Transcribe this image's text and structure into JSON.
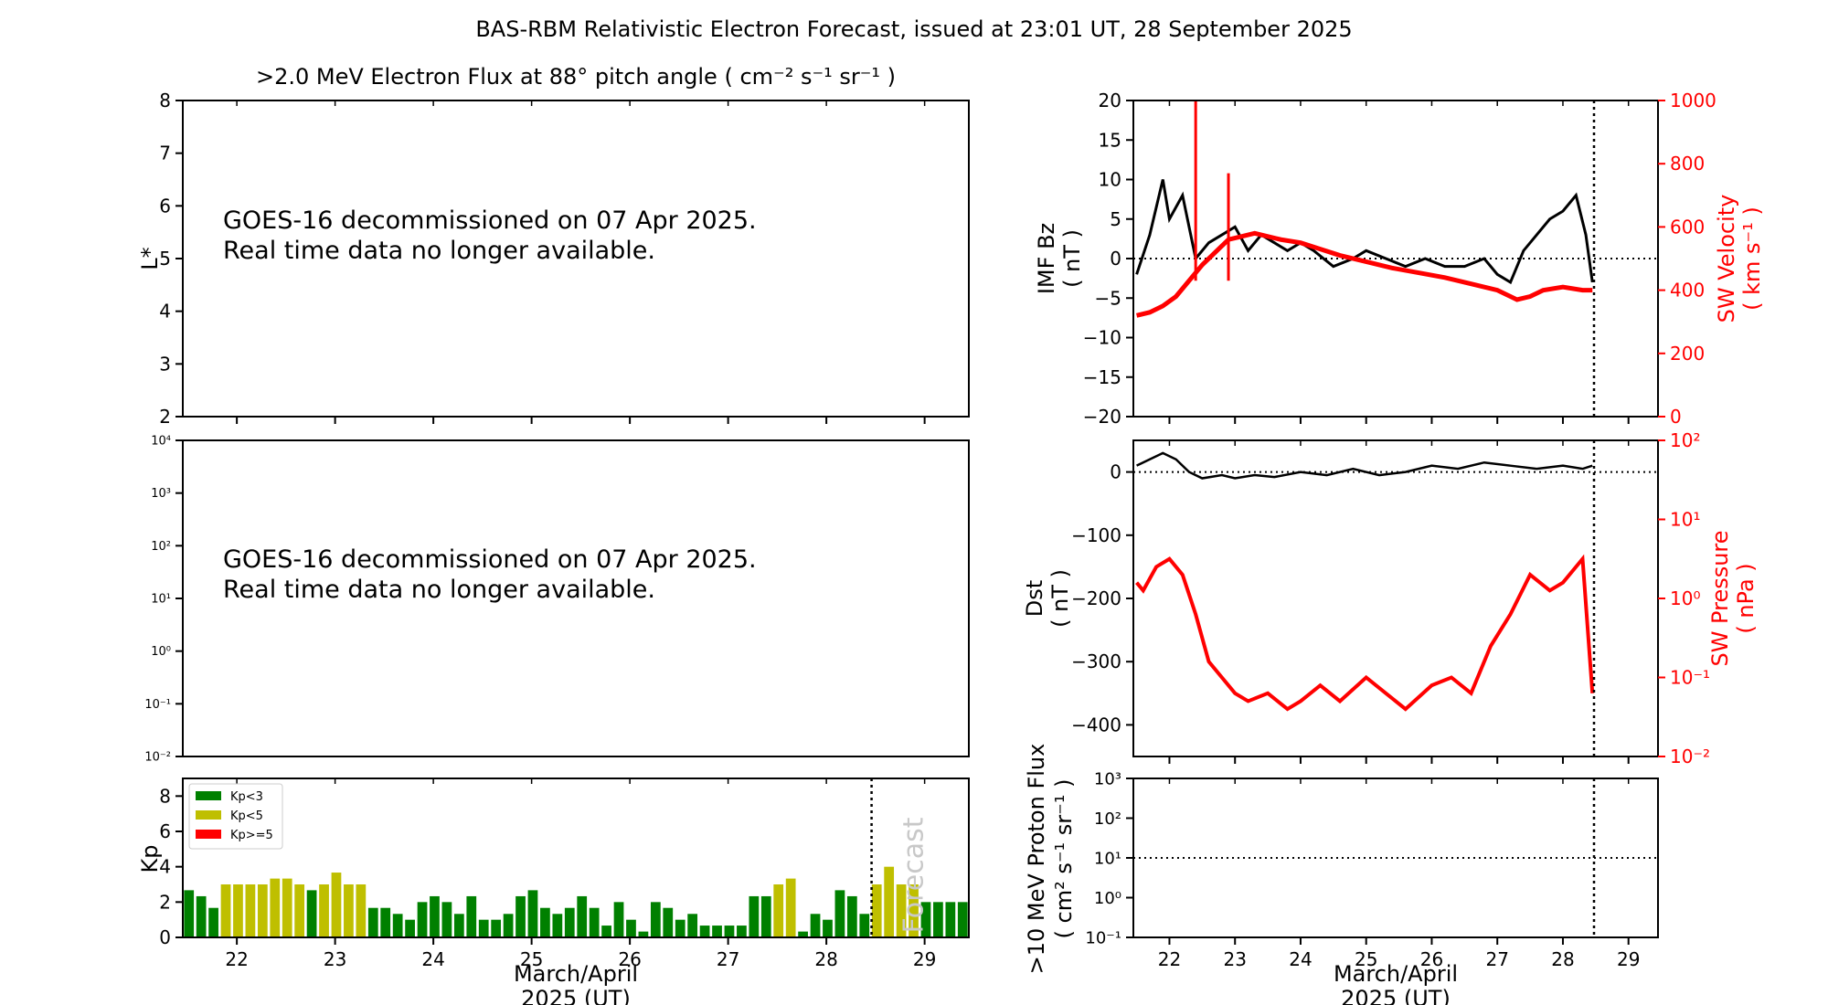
{
  "figure": {
    "title": "BAS-RBM Relativistic Electron Forecast, issued at 23:01 UT, 28 September 2025"
  },
  "chart_data": [
    {
      "id": "flux-panel",
      "type": "heatmap",
      "title": ">2.0 MeV Electron Flux at 88° pitch angle ( cm⁻² s⁻¹ sr⁻¹ )",
      "ylabel": "L*",
      "ylim": [
        2,
        8
      ],
      "yticks": [
        "2",
        "3",
        "4",
        "5",
        "6",
        "7",
        "8"
      ],
      "annotation": [
        "GOES-16 decommissioned on 07 Apr 2025.",
        "Real time data no longer available."
      ]
    },
    {
      "id": "goes-panel",
      "type": "line",
      "yscale": "log",
      "ylim": [
        -2,
        4
      ],
      "yticks": [
        "10⁻²",
        "10⁻¹",
        "10⁰",
        "10¹",
        "10²",
        "10³",
        "10⁴"
      ],
      "annotation": [
        "GOES-16 decommissioned on 07 Apr 2025.",
        "Real time data no longer available."
      ]
    },
    {
      "id": "kp-panel",
      "type": "bar",
      "ylabel": "Kp",
      "xlabel": [
        "March/April",
        "2025 (UT)"
      ],
      "xlim": [
        21.45,
        29.45
      ],
      "ylim": [
        0,
        9
      ],
      "xticks": [
        "22",
        "23",
        "24",
        "25",
        "26",
        "27",
        "28",
        "29"
      ],
      "yticks": [
        "0",
        "2",
        "4",
        "6",
        "8"
      ],
      "forecast_label": "Forecast",
      "forecast_start": 28.46,
      "legend": [
        {
          "label": "Kp<3",
          "color": "#008000"
        },
        {
          "label": "Kp<5",
          "color": "#bfbf00"
        },
        {
          "label": "Kp>=5",
          "color": "#ff0000"
        }
      ],
      "values": [
        2.67,
        2.33,
        1.67,
        3.0,
        3.0,
        3.0,
        3.0,
        3.33,
        3.33,
        3.0,
        2.67,
        3.0,
        3.67,
        3.0,
        3.0,
        1.67,
        1.67,
        1.33,
        1.0,
        2.0,
        2.33,
        2.0,
        1.33,
        2.33,
        1.0,
        1.0,
        1.33,
        2.33,
        2.67,
        1.67,
        1.33,
        1.67,
        2.33,
        1.67,
        0.67,
        2.0,
        1.0,
        0.33,
        2.0,
        1.67,
        1.0,
        1.33,
        0.67,
        0.67,
        0.67,
        0.67,
        2.33,
        2.33,
        3.0,
        3.33,
        0.33,
        1.33,
        1.0,
        2.67,
        2.33,
        1.33,
        3.0,
        4.0,
        3.0,
        3.0,
        2.0,
        2.0,
        2.0,
        2.0
      ]
    },
    {
      "id": "imf-panel",
      "type": "line",
      "ylabel": [
        "IMF Bz",
        "( nT )"
      ],
      "ylabel_right": [
        "SW Velocity",
        "( km s⁻¹ )"
      ],
      "ylim": [
        -20,
        20
      ],
      "ylim_right": [
        0,
        1000
      ],
      "yticks": [
        "−20",
        "−15",
        "−10",
        "−5",
        "0",
        "5",
        "10",
        "15",
        "20"
      ],
      "yticks_right": [
        "0",
        "200",
        "400",
        "600",
        "800",
        "1000"
      ],
      "series": [
        {
          "name": "IMF Bz",
          "color": "#000000",
          "x": [
            21.5,
            21.7,
            21.9,
            22.0,
            22.2,
            22.4,
            22.6,
            22.8,
            23.0,
            23.2,
            23.4,
            23.6,
            23.8,
            24.0,
            24.2,
            24.5,
            24.8,
            25.0,
            25.3,
            25.6,
            25.9,
            26.2,
            26.5,
            26.8,
            27.0,
            27.2,
            27.4,
            27.6,
            27.8,
            28.0,
            28.2,
            28.35,
            28.45
          ],
          "values": [
            -2,
            3,
            10,
            5,
            8,
            0,
            2,
            3,
            4,
            1,
            3,
            2,
            1,
            2,
            1,
            -1,
            0,
            1,
            0,
            -1,
            0,
            -1,
            -1,
            0,
            -2,
            -3,
            1,
            3,
            5,
            6,
            8,
            3,
            -3
          ]
        },
        {
          "name": "SW Velocity",
          "color": "#ff0000",
          "x": [
            21.5,
            21.7,
            21.9,
            22.1,
            22.3,
            22.5,
            22.7,
            22.9,
            23.1,
            23.3,
            23.5,
            23.7,
            24.0,
            24.3,
            24.6,
            25.0,
            25.4,
            25.8,
            26.2,
            26.6,
            27.0,
            27.3,
            27.5,
            27.7,
            28.0,
            28.3,
            28.45
          ],
          "values": [
            320,
            330,
            350,
            380,
            430,
            480,
            520,
            560,
            570,
            580,
            570,
            560,
            550,
            530,
            510,
            490,
            470,
            455,
            440,
            420,
            400,
            370,
            380,
            400,
            410,
            400,
            400
          ]
        }
      ],
      "spikes": [
        {
          "x": 22.4,
          "value": 1000
        },
        {
          "x": 22.9,
          "value": 770
        }
      ]
    },
    {
      "id": "dst-panel",
      "type": "line",
      "ylabel": [
        "Dst",
        "( nT )"
      ],
      "ylabel_right": [
        "SW Pressure",
        "( nPa )"
      ],
      "ylim": [
        -450,
        50
      ],
      "yticks": [
        "−400",
        "−300",
        "−200",
        "−100",
        "0"
      ],
      "yticks_right": [
        "10⁻²",
        "10⁻¹",
        "10⁰",
        "10¹",
        "10²"
      ],
      "ylim_right_log10": [
        -2,
        2
      ],
      "series": [
        {
          "name": "Dst",
          "color": "#000000",
          "x": [
            21.5,
            21.7,
            21.9,
            22.1,
            22.3,
            22.5,
            22.8,
            23.0,
            23.3,
            23.6,
            24.0,
            24.4,
            24.8,
            25.2,
            25.6,
            26.0,
            26.4,
            26.8,
            27.2,
            27.6,
            28.0,
            28.3,
            28.45
          ],
          "values": [
            10,
            20,
            30,
            20,
            0,
            -10,
            -5,
            -10,
            -5,
            -8,
            0,
            -5,
            5,
            -5,
            0,
            10,
            5,
            15,
            10,
            5,
            10,
            5,
            10
          ]
        },
        {
          "name": "SW Pressure (log10)",
          "color": "#ff0000",
          "x": [
            21.5,
            21.6,
            21.8,
            22.0,
            22.2,
            22.4,
            22.6,
            22.8,
            23.0,
            23.2,
            23.5,
            23.8,
            24.0,
            24.3,
            24.6,
            25.0,
            25.3,
            25.6,
            26.0,
            26.3,
            26.6,
            26.9,
            27.2,
            27.5,
            27.8,
            28.0,
            28.2,
            28.3,
            28.45
          ],
          "values": [
            0.2,
            0.1,
            0.4,
            0.5,
            0.3,
            -0.2,
            -0.8,
            -1.0,
            -1.2,
            -1.3,
            -1.2,
            -1.4,
            -1.3,
            -1.1,
            -1.3,
            -1.0,
            -1.2,
            -1.4,
            -1.1,
            -1.0,
            -1.2,
            -0.6,
            -0.2,
            0.3,
            0.1,
            0.2,
            0.4,
            0.5,
            -1.2
          ]
        }
      ]
    },
    {
      "id": "proton-panel",
      "type": "line",
      "ylabel": [
        ">10 MeV Proton Flux",
        "( cm² s⁻¹ sr⁻¹ )"
      ],
      "xlabel": [
        "March/April",
        "2025 (UT)"
      ],
      "yscale": "log",
      "ylim": [
        -1,
        3
      ],
      "yticks": [
        "10⁻¹",
        "10⁰",
        "10¹",
        "10²",
        "10³"
      ],
      "xticks": [
        "22",
        "23",
        "24",
        "25",
        "26",
        "27",
        "28",
        "29"
      ],
      "threshold": 10
    }
  ]
}
